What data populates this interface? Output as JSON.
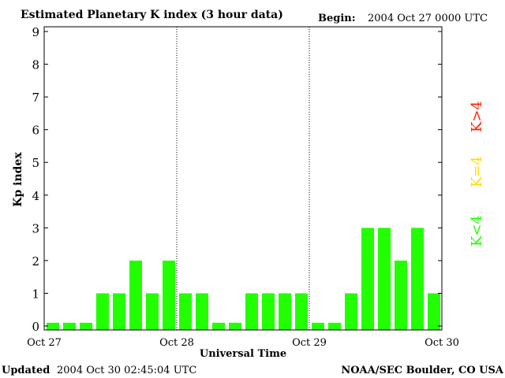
{
  "chart_data": {
    "type": "bar",
    "title": "Estimated Planetary K index (3 hour data)",
    "begin_label": "Begin:",
    "begin_value": "2004 Oct 27 0000 UTC",
    "xlabel": "Universal Time",
    "ylabel": "Kp index",
    "ylim": [
      0,
      9
    ],
    "yticks": [
      "0",
      "1",
      "2",
      "3",
      "4",
      "5",
      "6",
      "7",
      "8",
      "9"
    ],
    "xticks": [
      "Oct 27",
      "Oct 28",
      "Oct 29",
      "Oct 30"
    ],
    "values": [
      0,
      0,
      0,
      1,
      1,
      2,
      1,
      2,
      1,
      1,
      0,
      0,
      1,
      1,
      1,
      1,
      0,
      0,
      1,
      3,
      3,
      2,
      3,
      1
    ],
    "bar_color": "#22ff00",
    "legend": [
      {
        "label": "K>4",
        "color": "#ff2200"
      },
      {
        "label": "K=4",
        "color": "#ffdd00"
      },
      {
        "label": "K<4",
        "color": "#22ff00"
      }
    ],
    "updated_label": "Updated",
    "updated_value": "2004 Oct 30 02:45:04 UTC",
    "credit": "NOAA/SEC Boulder, CO USA"
  }
}
